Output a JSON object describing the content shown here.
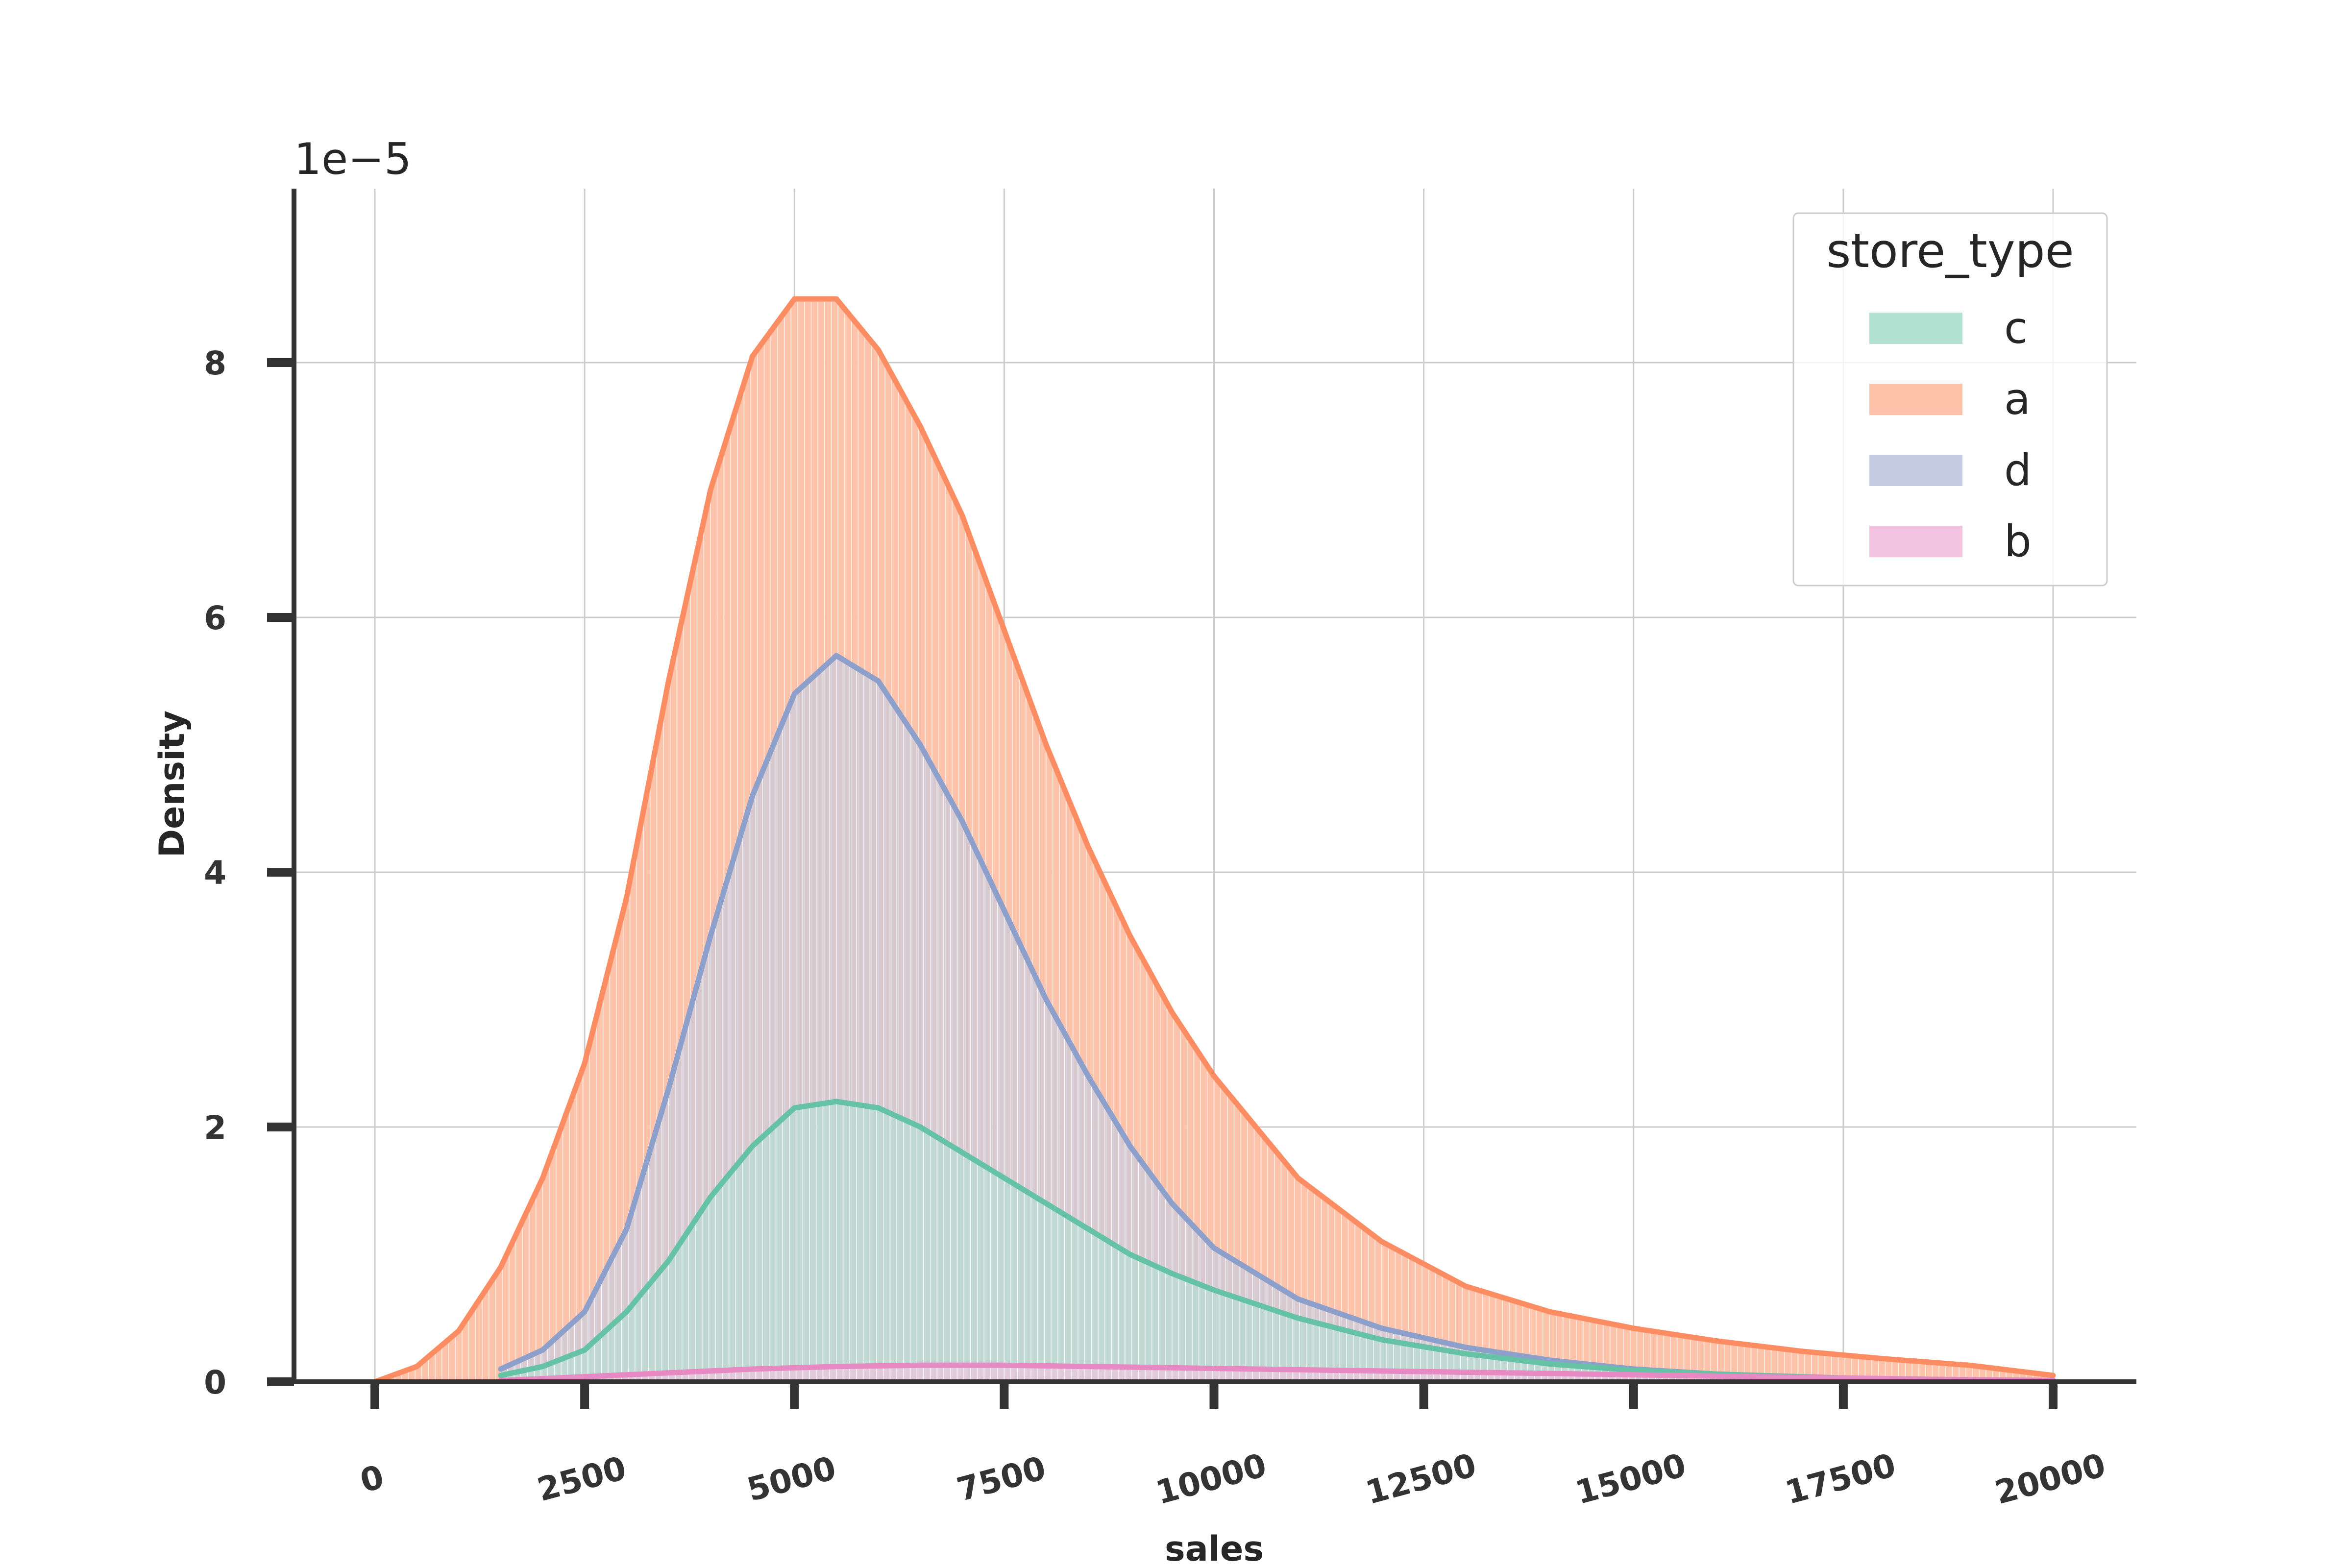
{
  "chart_data": {
    "type": "histogram",
    "xlabel": "sales",
    "ylabel": "Density",
    "y_offset_label": "1e−5",
    "xlim": [
      -1000,
      21000
    ],
    "ylim": [
      0,
      9.3
    ],
    "x_ticks": [
      0,
      2500,
      5000,
      7500,
      10000,
      12500,
      15000,
      17500,
      20000
    ],
    "x_tick_labels": [
      "0",
      "2500",
      "5000",
      "7500",
      "10000",
      "12500",
      "15000",
      "17500",
      "20000"
    ],
    "y_ticks": [
      0,
      2,
      4,
      6,
      8
    ],
    "y_tick_labels": [
      "0",
      "2",
      "4",
      "6",
      "8"
    ],
    "grid": true,
    "legend": {
      "title": "store_type",
      "position": "top-right",
      "entries": [
        "c",
        "a",
        "d",
        "b"
      ]
    },
    "series": [
      {
        "name": "a",
        "color": "#fc8d62",
        "fill": "#fdc3aa",
        "kde_x": [
          0,
          500,
          1000,
          1500,
          2000,
          2500,
          3000,
          3500,
          4000,
          4500,
          5000,
          5500,
          6000,
          6500,
          7000,
          7500,
          8000,
          8500,
          9000,
          9500,
          10000,
          11000,
          12000,
          13000,
          14000,
          15000,
          16000,
          17000,
          18000,
          19000,
          20000
        ],
        "kde_y": [
          0,
          0.12,
          0.4,
          0.9,
          1.6,
          2.5,
          3.8,
          5.5,
          7.0,
          8.05,
          8.5,
          8.5,
          8.1,
          7.5,
          6.8,
          5.9,
          5.0,
          4.2,
          3.5,
          2.9,
          2.4,
          1.6,
          1.1,
          0.75,
          0.55,
          0.42,
          0.32,
          0.24,
          0.18,
          0.13,
          0.05
        ]
      },
      {
        "name": "d",
        "color": "#8da0cb",
        "fill": "#c4cde3",
        "kde_x": [
          1500,
          2000,
          2500,
          3000,
          3500,
          4000,
          4500,
          5000,
          5500,
          6000,
          6500,
          7000,
          7500,
          8000,
          8500,
          9000,
          9500,
          10000,
          11000,
          12000,
          13000,
          14000,
          15000,
          16000,
          17000,
          18000,
          20000
        ],
        "kde_y": [
          0.1,
          0.25,
          0.55,
          1.2,
          2.3,
          3.5,
          4.6,
          5.4,
          5.7,
          5.5,
          5.0,
          4.4,
          3.7,
          3.0,
          2.4,
          1.85,
          1.4,
          1.05,
          0.65,
          0.42,
          0.27,
          0.17,
          0.1,
          0.06,
          0.03,
          0.02,
          0.01
        ]
      },
      {
        "name": "c",
        "color": "#66c2a5",
        "fill": "#b3e1d2",
        "kde_x": [
          1500,
          2000,
          2500,
          3000,
          3500,
          4000,
          4500,
          5000,
          5500,
          6000,
          6500,
          7000,
          7500,
          8000,
          8500,
          9000,
          9500,
          10000,
          11000,
          12000,
          13000,
          14000,
          15000,
          16000,
          17000,
          18000,
          20000
        ],
        "kde_y": [
          0.05,
          0.12,
          0.25,
          0.55,
          0.95,
          1.45,
          1.85,
          2.15,
          2.2,
          2.15,
          2.0,
          1.8,
          1.6,
          1.4,
          1.2,
          1.0,
          0.85,
          0.72,
          0.5,
          0.33,
          0.22,
          0.14,
          0.09,
          0.06,
          0.04,
          0.02,
          0.01
        ]
      },
      {
        "name": "b",
        "color": "#e78ac3",
        "fill": "#f3c4e1",
        "kde_x": [
          1500,
          2500,
          3500,
          4500,
          5500,
          6500,
          7500,
          8500,
          9500,
          10500,
          11500,
          12500,
          13500,
          14500,
          15500,
          16500,
          17500,
          18500,
          20000
        ],
        "kde_y": [
          0.01,
          0.04,
          0.07,
          0.1,
          0.12,
          0.13,
          0.13,
          0.12,
          0.11,
          0.1,
          0.09,
          0.08,
          0.07,
          0.06,
          0.05,
          0.04,
          0.03,
          0.02,
          0.01
        ]
      }
    ]
  }
}
